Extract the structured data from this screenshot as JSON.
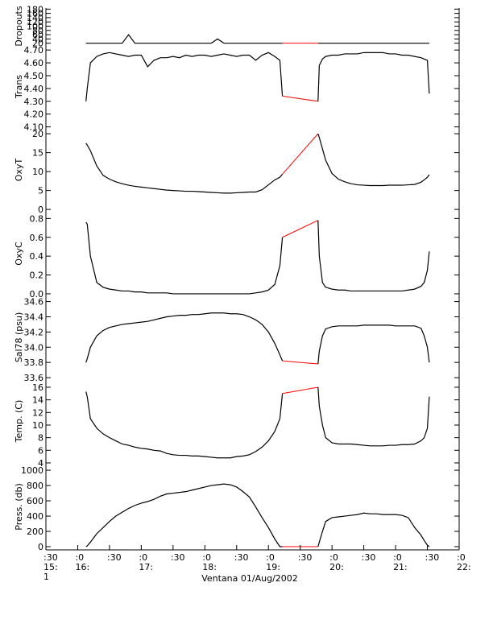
{
  "chart_data": {
    "type": "line",
    "xlabel": "Ventana 01/Aug/2002",
    "xlim": [
      15.5,
      22
    ],
    "xticks": [
      {
        "value": 15.5,
        "label": ":30",
        "sublabel": "15:"
      },
      {
        "value": 16,
        "label": ":0",
        "sublabel": "16:"
      },
      {
        "value": 16.5,
        "label": ":30"
      },
      {
        "value": 17,
        "label": ":0",
        "sublabel": "17:"
      },
      {
        "value": 17.5,
        "label": ":30"
      },
      {
        "value": 18,
        "label": ":0",
        "sublabel": "18:"
      },
      {
        "value": 18.5,
        "label": ":30"
      },
      {
        "value": 19,
        "label": ":0",
        "sublabel": "19:"
      },
      {
        "value": 19.5,
        "label": ":30"
      },
      {
        "value": 20,
        "label": ":0",
        "sublabel": "20:"
      },
      {
        "value": 20.5,
        "label": ":30"
      },
      {
        "value": 21,
        "label": ":0",
        "sublabel": "21:"
      },
      {
        "value": 21.5,
        "label": ":30"
      },
      {
        "value": 22,
        "label": ":0",
        "sublabel": "22:"
      }
    ],
    "x_day": "1",
    "gap_color": "#ff0000",
    "x": [
      16.13,
      16.15,
      16.2,
      16.3,
      16.4,
      16.5,
      16.6,
      16.7,
      16.8,
      16.9,
      17.0,
      17.1,
      17.2,
      17.3,
      17.4,
      17.5,
      17.6,
      17.7,
      17.8,
      17.9,
      18.0,
      18.1,
      18.2,
      18.3,
      18.4,
      18.5,
      18.6,
      18.7,
      18.8,
      18.9,
      19.0,
      19.1,
      19.18,
      19.22,
      19.78,
      19.8,
      19.85,
      19.9,
      20.0,
      20.1,
      20.2,
      20.3,
      20.4,
      20.5,
      20.6,
      20.7,
      20.8,
      20.9,
      21.0,
      21.1,
      21.2,
      21.3,
      21.4,
      21.45,
      21.5,
      21.53
    ],
    "panels": [
      {
        "ylabel": "Dropouts",
        "ylim": [
          15,
          185
        ],
        "yticks": [
          20,
          40,
          60,
          80,
          100,
          120,
          140,
          160,
          180
        ],
        "color": "#000000",
        "values": [
          20,
          20,
          20,
          20,
          20,
          20,
          20,
          20,
          60,
          20,
          20,
          20,
          20,
          20,
          20,
          20,
          20,
          20,
          20,
          20,
          20,
          20,
          40,
          20,
          20,
          20,
          20,
          20,
          20,
          20,
          20,
          20,
          20,
          20,
          20,
          20,
          20,
          20,
          20,
          20,
          20,
          20,
          20,
          20,
          20,
          20,
          20,
          20,
          20,
          20,
          20,
          20,
          20,
          20,
          20,
          20
        ]
      },
      {
        "ylabel": "Trans",
        "ylim": [
          4.085,
          4.745
        ],
        "yticks": [
          {
            "value": 4.1,
            "label": "4.10"
          },
          {
            "value": 4.2,
            "label": "4.20"
          },
          {
            "value": 4.3,
            "label": "4.30"
          },
          {
            "value": 4.4,
            "label": "4.40"
          },
          {
            "value": 4.5,
            "label": "4.50"
          },
          {
            "value": 4.6,
            "label": "4.60"
          },
          {
            "value": 4.7,
            "label": "4.70"
          }
        ],
        "color": "#000000",
        "values": [
          4.3,
          4.4,
          4.6,
          4.65,
          4.67,
          4.68,
          4.67,
          4.66,
          4.65,
          4.66,
          4.66,
          4.57,
          4.62,
          4.64,
          4.64,
          4.65,
          4.64,
          4.66,
          4.65,
          4.66,
          4.66,
          4.65,
          4.66,
          4.67,
          4.66,
          4.65,
          4.66,
          4.66,
          4.62,
          4.66,
          4.68,
          4.65,
          4.62,
          4.34,
          4.3,
          4.58,
          4.63,
          4.65,
          4.66,
          4.66,
          4.67,
          4.67,
          4.67,
          4.68,
          4.68,
          4.68,
          4.68,
          4.67,
          4.67,
          4.66,
          4.66,
          4.65,
          4.64,
          4.63,
          4.62,
          4.36
        ]
      },
      {
        "ylabel": "OxyT",
        "ylim": [
          -0.4,
          21.3
        ],
        "yticks": [
          0,
          5,
          10,
          15,
          20
        ],
        "color": "#000000",
        "values": [
          17.5,
          17.0,
          15.5,
          11.5,
          9.0,
          8.0,
          7.3,
          6.8,
          6.4,
          6.1,
          5.9,
          5.7,
          5.5,
          5.3,
          5.1,
          5.0,
          4.9,
          4.8,
          4.8,
          4.7,
          4.6,
          4.5,
          4.4,
          4.3,
          4.3,
          4.4,
          4.5,
          4.6,
          4.6,
          5.2,
          6.5,
          7.8,
          8.5,
          9.3,
          20.0,
          19.0,
          16.0,
          13.0,
          9.5,
          8.0,
          7.3,
          6.8,
          6.5,
          6.4,
          6.3,
          6.3,
          6.3,
          6.4,
          6.4,
          6.4,
          6.5,
          6.6,
          7.2,
          7.8,
          8.5,
          9.2
        ]
      },
      {
        "ylabel": "OxyC",
        "ylim": [
          -0.026,
          0.88
        ],
        "yticks": [
          {
            "value": 0,
            "label": "0.0"
          },
          0.2,
          0.4,
          0.6,
          0.8
        ],
        "color": "#000000",
        "values": [
          0.76,
          0.74,
          0.4,
          0.12,
          0.07,
          0.05,
          0.04,
          0.03,
          0.03,
          0.02,
          0.02,
          0.01,
          0.01,
          0.01,
          0.01,
          0.0,
          0.0,
          0.0,
          0.0,
          0.0,
          0.0,
          0.0,
          0.0,
          0.0,
          0.0,
          0.0,
          0.0,
          0.0,
          0.01,
          0.02,
          0.04,
          0.1,
          0.3,
          0.6,
          0.78,
          0.4,
          0.12,
          0.07,
          0.05,
          0.04,
          0.04,
          0.03,
          0.03,
          0.03,
          0.03,
          0.03,
          0.03,
          0.03,
          0.03,
          0.03,
          0.04,
          0.05,
          0.08,
          0.12,
          0.25,
          0.45
        ]
      },
      {
        "ylabel": "Sal78 (psu)",
        "ylim": [
          33.59,
          34.67
        ],
        "yticks": [
          33.6,
          33.8,
          {
            "value": 34,
            "label": "34.0"
          },
          34.2,
          34.4,
          34.6
        ],
        "color": "#000000",
        "values": [
          33.8,
          33.85,
          34.0,
          34.15,
          34.22,
          34.26,
          34.28,
          34.3,
          34.31,
          34.32,
          34.33,
          34.34,
          34.36,
          34.38,
          34.4,
          34.41,
          34.42,
          34.42,
          34.43,
          34.43,
          34.44,
          34.45,
          34.45,
          34.45,
          34.44,
          34.44,
          34.43,
          34.4,
          34.36,
          34.3,
          34.2,
          34.05,
          33.9,
          33.82,
          33.78,
          33.95,
          34.15,
          34.24,
          34.27,
          34.28,
          34.28,
          34.28,
          34.28,
          34.29,
          34.29,
          34.29,
          34.29,
          34.29,
          34.28,
          34.28,
          34.28,
          34.28,
          34.25,
          34.15,
          34.0,
          33.8
        ]
      },
      {
        "ylabel": "Temp. (C)",
        "ylim": [
          3.87,
          17.4
        ],
        "yticks": [
          4,
          6,
          8,
          10,
          12,
          14,
          16
        ],
        "color": "#000000",
        "values": [
          15.3,
          14.5,
          11.0,
          9.5,
          8.6,
          8.0,
          7.5,
          7.0,
          6.8,
          6.5,
          6.3,
          6.2,
          6.0,
          5.9,
          5.5,
          5.3,
          5.2,
          5.2,
          5.1,
          5.1,
          5.0,
          4.9,
          4.8,
          4.8,
          4.8,
          5.0,
          5.1,
          5.3,
          5.8,
          6.5,
          7.5,
          9.0,
          11.0,
          15.0,
          16.0,
          13.0,
          10.0,
          8.0,
          7.2,
          7.0,
          7.0,
          7.0,
          6.9,
          6.8,
          6.7,
          6.7,
          6.7,
          6.8,
          6.8,
          6.9,
          6.9,
          7.0,
          7.5,
          8.0,
          9.5,
          14.5
        ]
      },
      {
        "ylabel": "Press. (db)",
        "ylim": [
          -42,
          1085
        ],
        "yticks": [
          0,
          200,
          400,
          600,
          800,
          1000
        ],
        "color": "#000000",
        "values": [
          0,
          10,
          60,
          170,
          250,
          330,
          400,
          450,
          500,
          540,
          570,
          590,
          620,
          660,
          690,
          700,
          710,
          720,
          740,
          760,
          780,
          800,
          810,
          820,
          810,
          780,
          720,
          650,
          520,
          380,
          250,
          100,
          0,
          0,
          0,
          60,
          200,
          330,
          380,
          390,
          400,
          410,
          420,
          440,
          430,
          430,
          420,
          420,
          420,
          410,
          380,
          250,
          150,
          80,
          20,
          0
        ]
      }
    ]
  }
}
